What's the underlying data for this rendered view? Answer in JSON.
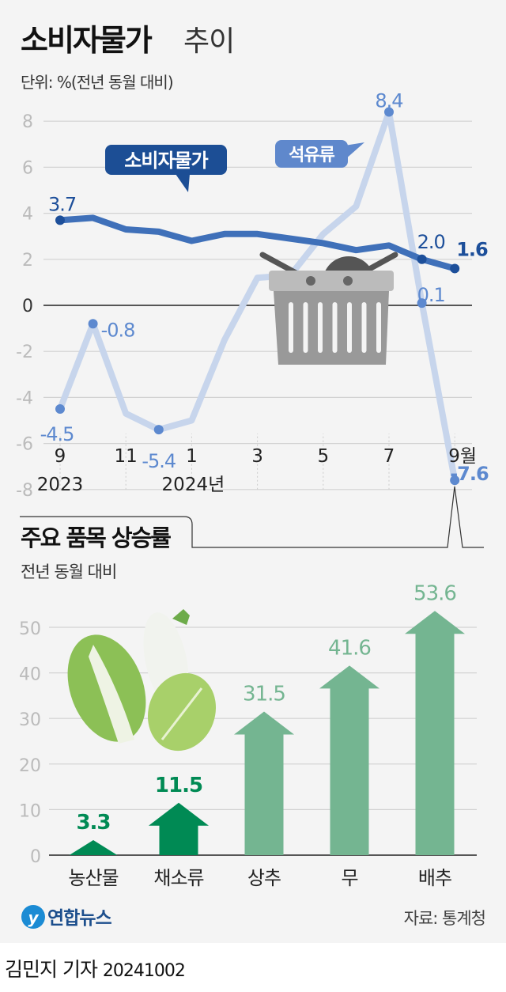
{
  "header": {
    "title_bold": "소비자물가",
    "title_light": "추이",
    "unit": "단위: %(전년 동월 대비)"
  },
  "colors": {
    "cpi_line": "#3f70b9",
    "cpi_dot": "#1d4f9a",
    "oil_line": "#c7d5ec",
    "oil_dot": "#5d89cf",
    "bar_dark": "#008a54",
    "bar_light": "#74b591",
    "background": "#f4f4f4"
  },
  "chart_data": [
    {
      "type": "line",
      "title": "소비자물가 추이",
      "ylabel": "단위: %(전년 동월 대비)",
      "ylim": [
        -8,
        8
      ],
      "yticks": [
        "8",
        "6",
        "4",
        "2",
        "0",
        "-2",
        "-4",
        "-6",
        "-8"
      ],
      "grid": true,
      "x": [
        "2023-09",
        "2023-10",
        "2023-11",
        "2023-12",
        "2024-01",
        "2024-02",
        "2024-03",
        "2024-04",
        "2024-05",
        "2024-06",
        "2024-07",
        "2024-08",
        "2024-09"
      ],
      "xtick_labels": [
        "9",
        "11",
        "1",
        "3",
        "5",
        "7",
        "9월"
      ],
      "year_labels": [
        "2023",
        "2024년"
      ],
      "series": [
        {
          "name": "소비자물가",
          "values": [
            3.7,
            3.8,
            3.3,
            3.2,
            2.8,
            3.1,
            3.1,
            2.9,
            2.7,
            2.4,
            2.6,
            2.0,
            1.6
          ],
          "data_labels": [
            {
              "index": 0,
              "text": "3.7"
            },
            {
              "index": 11,
              "text": "2.0"
            },
            {
              "index": 12,
              "text": "1.6"
            }
          ]
        },
        {
          "name": "석유류",
          "values": [
            -4.5,
            -0.8,
            -4.7,
            -5.4,
            -5.0,
            -1.5,
            1.2,
            1.3,
            3.1,
            4.3,
            8.4,
            0.1,
            -7.6
          ],
          "data_labels": [
            {
              "index": 0,
              "text": "-4.5"
            },
            {
              "index": 1,
              "text": "-0.8"
            },
            {
              "index": 3,
              "text": "-5.4"
            },
            {
              "index": 10,
              "text": "8.4"
            },
            {
              "index": 11,
              "text": "0.1"
            },
            {
              "index": 12,
              "text": "-7.6"
            }
          ]
        }
      ]
    },
    {
      "type": "bar",
      "title": "주요 품목 상승률",
      "ylabel": "전년 동월 대비",
      "ylim": [
        0,
        50
      ],
      "yticks": [
        "50",
        "40",
        "30",
        "20",
        "10",
        "0"
      ],
      "grid": true,
      "categories": [
        "농산물",
        "채소류",
        "상추",
        "무",
        "배추"
      ],
      "values": [
        3.3,
        11.5,
        31.5,
        41.6,
        53.6
      ],
      "value_labels": [
        "3.3",
        "11.5",
        "31.5",
        "41.6",
        "53.6"
      ],
      "highlight": [
        true,
        true,
        false,
        false,
        false
      ]
    }
  ],
  "footer": {
    "logo": "연합뉴스",
    "source": "자료: 통계청",
    "byline": "김민지 기자",
    "date": "20241002"
  },
  "icons": [
    "shopping-basket-icon",
    "won-speech-bubble-icon",
    "vegetables-illustration"
  ]
}
